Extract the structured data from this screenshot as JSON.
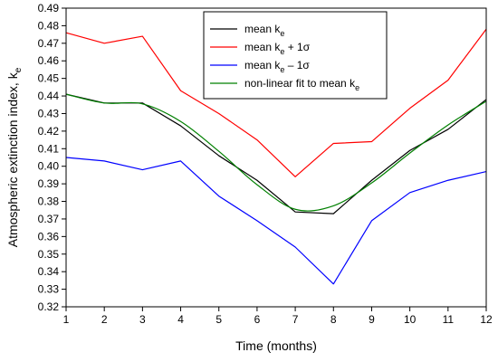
{
  "chart_data": {
    "type": "line",
    "xlabel": "Time (months)",
    "ylabel": {
      "main": "Atmospheric extinction index, k",
      "sub": "e"
    },
    "xlim": [
      1,
      12
    ],
    "ylim": [
      0.32,
      0.49
    ],
    "x_ticks": [
      1,
      2,
      3,
      4,
      5,
      6,
      7,
      8,
      9,
      10,
      11,
      12
    ],
    "y_ticks": [
      0.32,
      0.33,
      0.34,
      0.35,
      0.36,
      0.37,
      0.38,
      0.39,
      0.4,
      0.41,
      0.42,
      0.43,
      0.44,
      0.45,
      0.46,
      0.47,
      0.48,
      0.49
    ],
    "grid": false,
    "legend_position": "top-right",
    "x": [
      1,
      2,
      3,
      4,
      5,
      6,
      7,
      8,
      9,
      10,
      11,
      12
    ],
    "series": [
      {
        "key": "mean",
        "name": "mean k",
        "name_sub": "e",
        "name_suffix": "",
        "color": "#000000",
        "values": [
          0.441,
          0.436,
          0.436,
          0.423,
          0.406,
          0.392,
          0.374,
          0.373,
          0.392,
          0.409,
          0.421,
          0.438
        ]
      },
      {
        "key": "plus",
        "name": "mean k",
        "name_sub": "e",
        "name_suffix": " + 1σ",
        "color": "#ff0000",
        "values": [
          0.476,
          0.47,
          0.474,
          0.443,
          0.43,
          0.415,
          0.394,
          0.413,
          0.414,
          0.433,
          0.449,
          0.478
        ]
      },
      {
        "key": "minus",
        "name": "mean k",
        "name_sub": "e",
        "name_suffix": " – 1σ",
        "color": "#0000ff",
        "values": [
          0.405,
          0.403,
          0.398,
          0.403,
          0.383,
          0.369,
          0.354,
          0.333,
          0.369,
          0.385,
          0.392,
          0.397
        ]
      },
      {
        "key": "fit",
        "name": "non-linear fit to mean k",
        "name_sub": "e",
        "name_suffix": "",
        "color": "#008000",
        "smooth": true,
        "values": [
          0.441,
          0.436,
          0.4355,
          0.4255,
          0.4085,
          0.3895,
          0.3755,
          0.3775,
          0.3905,
          0.4075,
          0.4235,
          0.437
        ]
      }
    ]
  }
}
